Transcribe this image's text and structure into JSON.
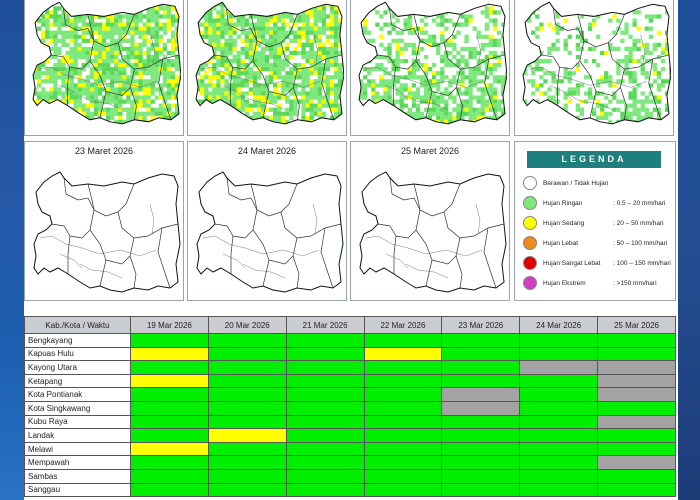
{
  "colors": {
    "no_rain": "#ffffff",
    "light": "#7ee87e",
    "moderate": "#ffff00",
    "heavy": "#f08a1c",
    "very_heavy": "#e00000",
    "extreme": "#d040c0",
    "table_light": "#00ee00",
    "table_moderate": "#ffff00",
    "table_cloudy": "#a3a3a3"
  },
  "maps": [
    {
      "title": "",
      "rain": "heavy"
    },
    {
      "title": "",
      "rain": "heavy"
    },
    {
      "title": "",
      "rain": "medium"
    },
    {
      "title": "",
      "rain": "light"
    },
    {
      "title": "23 Maret 2026",
      "rain": "none"
    },
    {
      "title": "24 Maret 2026",
      "rain": "none"
    },
    {
      "title": "25 Maret 2026",
      "rain": "none"
    }
  ],
  "legend": {
    "title": "LEGENDA",
    "items": [
      {
        "name": "Berawan / Tidak Hujan",
        "range": "",
        "color": "no_rain"
      },
      {
        "name": "Hujan Ringan",
        "range": ": 0.5 – 20 mm/hari",
        "color": "light"
      },
      {
        "name": "Hujan Sedang",
        "range": ": 20 – 50 mm/hari",
        "color": "moderate"
      },
      {
        "name": "Hujan Lebat",
        "range": ": 50 – 100 mm/hari",
        "color": "heavy"
      },
      {
        "name": "Hujan Sangat Lebat",
        "range": ": 100 – 150 mm/hari",
        "color": "very_heavy"
      },
      {
        "name": "Hujan Ekstrem",
        "range": ": >150 mm/hari",
        "color": "extreme"
      }
    ]
  },
  "table": {
    "header_first": "Kab./Kota / Waktu",
    "dates": [
      "19 Mar 2026",
      "20 Mar 2026",
      "21 Mar 2026",
      "22 Mar 2026",
      "23 Mar 2026",
      "24 Mar 2026",
      "25 Mar 2026"
    ],
    "rows": [
      {
        "name": "Bengkayang",
        "cells": [
          "g",
          "g",
          "g",
          "g",
          "g",
          "g",
          "g"
        ]
      },
      {
        "name": "Kapuas Hulu",
        "cells": [
          "y",
          "g",
          "g",
          "y",
          "g",
          "g",
          "g"
        ]
      },
      {
        "name": "Kayong Utara",
        "cells": [
          "g",
          "g",
          "g",
          "g",
          "g",
          "x",
          "x"
        ]
      },
      {
        "name": "Ketapang",
        "cells": [
          "y",
          "g",
          "g",
          "g",
          "g",
          "g",
          "x"
        ]
      },
      {
        "name": "Kota Pontianak",
        "cells": [
          "g",
          "g",
          "g",
          "g",
          "x",
          "g",
          "x"
        ]
      },
      {
        "name": "Kota Singkawang",
        "cells": [
          "g",
          "g",
          "g",
          "g",
          "x",
          "g",
          "g"
        ]
      },
      {
        "name": "Kubu Raya",
        "cells": [
          "g",
          "g",
          "g",
          "g",
          "g",
          "g",
          "x"
        ]
      },
      {
        "name": "Landak",
        "cells": [
          "g",
          "y",
          "g",
          "g",
          "g",
          "g",
          "g"
        ]
      },
      {
        "name": "Melawi",
        "cells": [
          "y",
          "g",
          "g",
          "g",
          "g",
          "g",
          "g"
        ]
      },
      {
        "name": "Mempawah",
        "cells": [
          "g",
          "g",
          "g",
          "g",
          "g",
          "g",
          "x"
        ]
      },
      {
        "name": "Sambas",
        "cells": [
          "g",
          "g",
          "g",
          "g",
          "g",
          "g",
          "g"
        ]
      },
      {
        "name": "Sanggau",
        "cells": [
          "g",
          "g",
          "g",
          "g",
          "g",
          "g",
          "g"
        ]
      }
    ]
  }
}
